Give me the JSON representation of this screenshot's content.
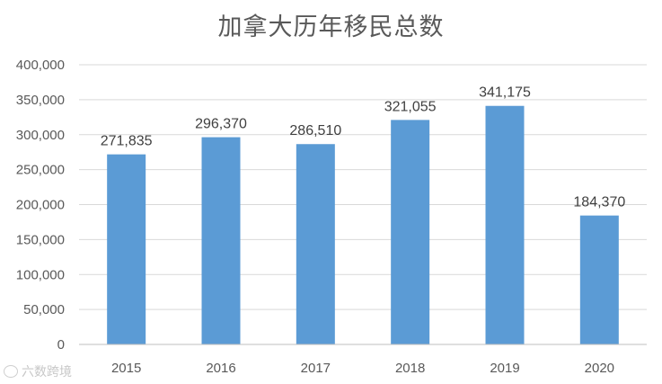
{
  "chart_data": {
    "type": "bar",
    "title": "加拿大历年移民总数",
    "xlabel": "",
    "ylabel": "",
    "categories": [
      "2015",
      "2016",
      "2017",
      "2018",
      "2019",
      "2020"
    ],
    "values": [
      271835,
      296370,
      286510,
      321055,
      341175,
      184370
    ],
    "value_labels": [
      "271,835",
      "296,370",
      "286,510",
      "321,055",
      "341,175",
      "184,370"
    ],
    "ylim": [
      0,
      400000
    ],
    "yticks": [
      0,
      50000,
      100000,
      150000,
      200000,
      250000,
      300000,
      350000,
      400000
    ],
    "ytick_labels": [
      "0",
      "50,000",
      "100,000",
      "150,000",
      "200,000",
      "250,000",
      "300,000",
      "350,000",
      "400,000"
    ],
    "grid": true,
    "legend": "none",
    "bar_color": "#5B9BD5"
  },
  "watermark": "六数跨境"
}
